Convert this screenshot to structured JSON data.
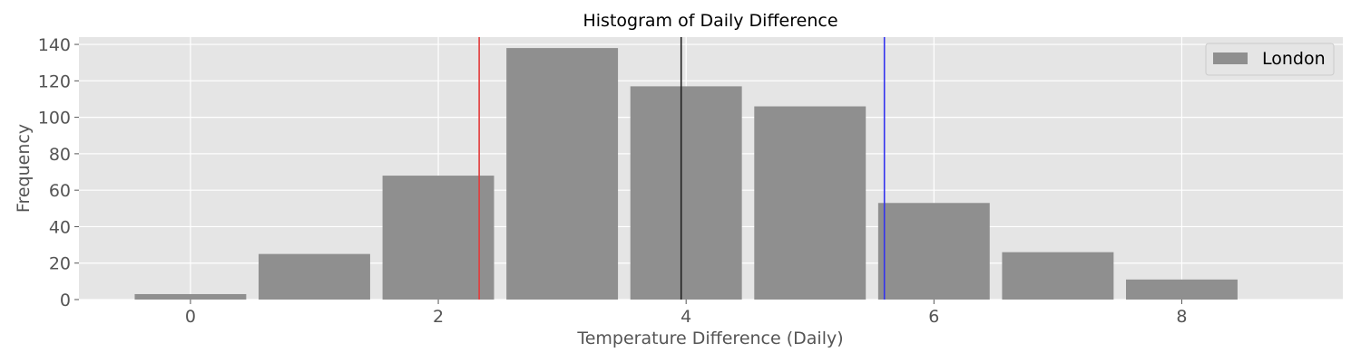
{
  "chart_data": {
    "type": "bar",
    "title": "Histogram of Daily Difference",
    "xlabel": "Temperature Difference (Daily)",
    "ylabel": "Frequency",
    "xlim": [
      -0.9,
      9.3
    ],
    "ylim": [
      0,
      144
    ],
    "xticks": [
      0,
      2,
      4,
      6,
      8
    ],
    "yticks": [
      0,
      20,
      40,
      60,
      80,
      100,
      120,
      140
    ],
    "grid": true,
    "legend_position": "top-right",
    "bar_width": 0.9,
    "bar_color": "#8f8f8f",
    "categories": [
      0,
      1,
      2,
      3,
      4,
      5,
      6,
      7,
      8
    ],
    "series": [
      {
        "name": "London",
        "values": [
          3,
          25,
          68,
          138,
          117,
          106,
          53,
          26,
          11
        ]
      }
    ],
    "reference_lines": [
      {
        "x": 2.33,
        "color": "#e33b3b"
      },
      {
        "x": 3.96,
        "color": "#222222"
      },
      {
        "x": 5.6,
        "color": "#3333ee"
      }
    ]
  }
}
